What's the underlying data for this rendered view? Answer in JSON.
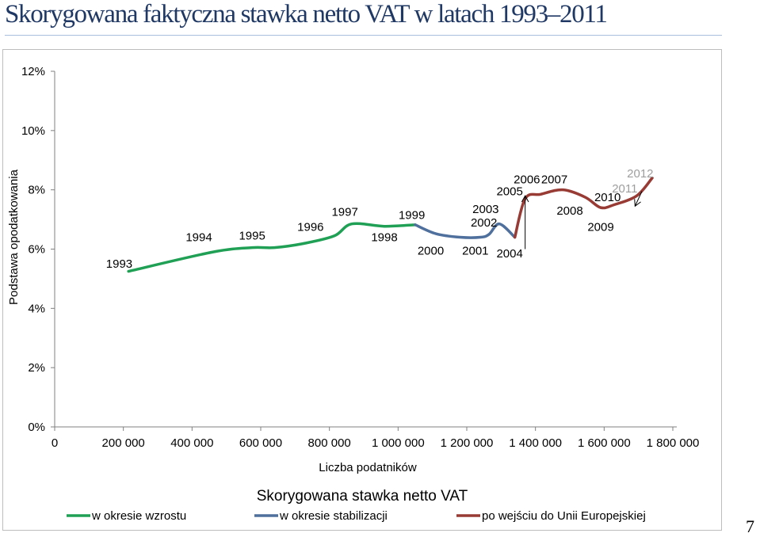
{
  "page": {
    "title": "Skorygowana faktyczna stawka netto VAT w latach 1993–2011",
    "page_number": "7"
  },
  "chart_data": {
    "type": "line",
    "xlabel": "Liczba podatników",
    "ylabel": "Podstawa opodatkowania",
    "legend_title": "Skorygowana stawka netto VAT",
    "legend_placement": "bottom",
    "xlim": [
      0,
      1800000
    ],
    "ylim": [
      0,
      12
    ],
    "x_ticks": [
      0,
      200000,
      400000,
      600000,
      800000,
      1000000,
      1200000,
      1400000,
      1600000,
      1800000
    ],
    "x_tick_labels": [
      "0",
      "200 000",
      "400 000",
      "600 000",
      "800 000",
      "1 000 000",
      "1 200 000",
      "1 400 000",
      "1 600 000",
      "1 800 000"
    ],
    "y_ticks": [
      0,
      2,
      4,
      6,
      8,
      10,
      12
    ],
    "y_tick_labels": [
      "0%",
      "2%",
      "4%",
      "6%",
      "8%",
      "10%",
      "12%"
    ],
    "grid": false,
    "series": [
      {
        "name": "w okresie wzrostu",
        "color": "#1fa055",
        "points": [
          {
            "x": 215000,
            "y": 5.25
          },
          {
            "x": 460000,
            "y": 5.9
          },
          {
            "x": 575000,
            "y": 6.05
          },
          {
            "x": 640000,
            "y": 6.05
          },
          {
            "x": 730000,
            "y": 6.2
          },
          {
            "x": 815000,
            "y": 6.45
          },
          {
            "x": 865000,
            "y": 6.85
          },
          {
            "x": 960000,
            "y": 6.77
          },
          {
            "x": 1050000,
            "y": 6.82
          }
        ]
      },
      {
        "name": "w okresie stabilizacji",
        "color": "#4f6f9c",
        "points": [
          {
            "x": 1050000,
            "y": 6.82
          },
          {
            "x": 1110000,
            "y": 6.52
          },
          {
            "x": 1180000,
            "y": 6.4
          },
          {
            "x": 1240000,
            "y": 6.4
          },
          {
            "x": 1265000,
            "y": 6.5
          },
          {
            "x": 1295000,
            "y": 6.85
          },
          {
            "x": 1340000,
            "y": 6.4
          }
        ]
      },
      {
        "name": "po wejściu do Unii Europejskiej",
        "color": "#983b35",
        "points": [
          {
            "x": 1340000,
            "y": 6.4
          },
          {
            "x": 1370000,
            "y": 7.7
          },
          {
            "x": 1415000,
            "y": 7.85
          },
          {
            "x": 1480000,
            "y": 8.0
          },
          {
            "x": 1545000,
            "y": 7.75
          },
          {
            "x": 1590000,
            "y": 7.4
          },
          {
            "x": 1630000,
            "y": 7.5
          },
          {
            "x": 1695000,
            "y": 7.8
          },
          {
            "x": 1740000,
            "y": 8.4
          }
        ]
      }
    ],
    "annotations": [
      {
        "text": "1993",
        "x": 188000,
        "y": 5.5,
        "color": "#000000"
      },
      {
        "text": "1994",
        "x": 420000,
        "y": 6.4,
        "color": "#000000"
      },
      {
        "text": "1995",
        "x": 575000,
        "y": 6.45,
        "color": "#000000"
      },
      {
        "text": "1996",
        "x": 745000,
        "y": 6.75,
        "color": "#000000"
      },
      {
        "text": "1997",
        "x": 845000,
        "y": 7.25,
        "color": "#000000"
      },
      {
        "text": "1998",
        "x": 960000,
        "y": 6.4,
        "color": "#000000"
      },
      {
        "text": "1999",
        "x": 1040000,
        "y": 7.15,
        "color": "#000000"
      },
      {
        "text": "2000",
        "x": 1095000,
        "y": 5.95,
        "color": "#000000"
      },
      {
        "text": "2001",
        "x": 1225000,
        "y": 5.95,
        "color": "#000000"
      },
      {
        "text": "2002",
        "x": 1250000,
        "y": 6.9,
        "color": "#000000"
      },
      {
        "text": "2003",
        "x": 1255000,
        "y": 7.35,
        "color": "#000000"
      },
      {
        "text": "2004",
        "x": 1325000,
        "y": 5.85,
        "color": "#000000"
      },
      {
        "text": "2005",
        "x": 1325000,
        "y": 7.95,
        "color": "#000000"
      },
      {
        "text": "2006",
        "x": 1375000,
        "y": 8.35,
        "color": "#000000"
      },
      {
        "text": "2007",
        "x": 1455000,
        "y": 8.35,
        "color": "#000000"
      },
      {
        "text": "2008",
        "x": 1500000,
        "y": 7.3,
        "color": "#000000"
      },
      {
        "text": "2009",
        "x": 1590000,
        "y": 6.75,
        "color": "#000000"
      },
      {
        "text": "2010",
        "x": 1610000,
        "y": 7.75,
        "color": "#000000"
      },
      {
        "text": "2011",
        "x": 1660000,
        "y": 8.05,
        "color": "#9e9e9e"
      },
      {
        "text": "2012",
        "x": 1705000,
        "y": 8.55,
        "color": "#9e9e9e"
      }
    ],
    "markers": [
      {
        "type": "vertical-arrow",
        "x": 1370000,
        "y_from": 6.0,
        "y_to": 7.8
      },
      {
        "type": "diagonal-arrow",
        "x_from": 1710000,
        "y_from": 7.95,
        "x_to": 1690000,
        "y_to": 7.45
      }
    ]
  }
}
